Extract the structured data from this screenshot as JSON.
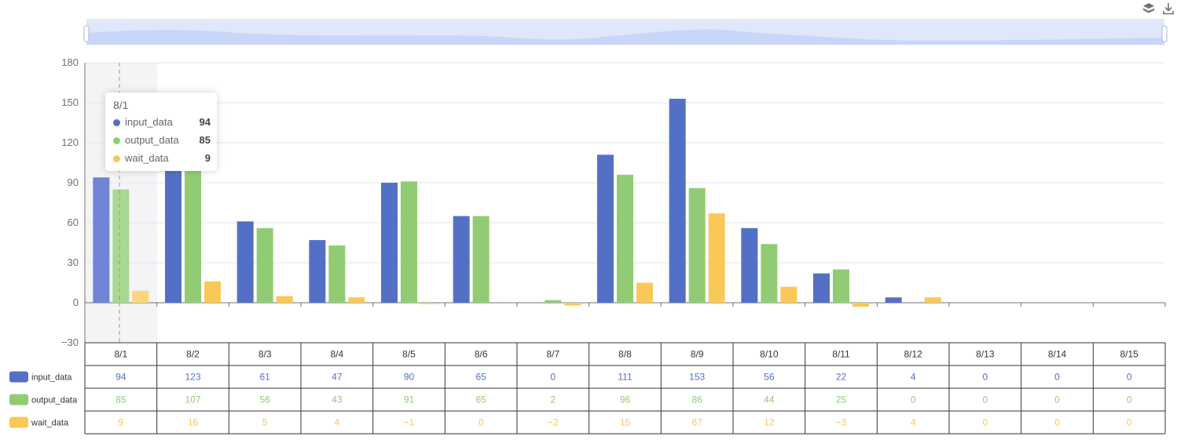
{
  "toolbox": {
    "icons": [
      "stack-icon",
      "download-icon"
    ]
  },
  "tooltip": {
    "title": "8/1",
    "rows": [
      {
        "name": "input_data",
        "value": "94",
        "color": "#5470c6"
      },
      {
        "name": "output_data",
        "value": "85",
        "color": "#91cc75"
      },
      {
        "name": "wait_data",
        "value": "9",
        "color": "#fac858"
      }
    ]
  },
  "chart_data": {
    "type": "bar",
    "title": "",
    "xlabel": "",
    "ylabel": "",
    "ylim": [
      -30,
      180
    ],
    "yticks": [
      "180",
      "150",
      "120",
      "90",
      "60",
      "30",
      "0",
      "−30"
    ],
    "grid": true,
    "legend": "bottom-left table",
    "categories": [
      "8/1",
      "8/2",
      "8/3",
      "8/4",
      "8/5",
      "8/6",
      "8/7",
      "8/8",
      "8/9",
      "8/10",
      "8/11",
      "8/12",
      "8/13",
      "8/14",
      "8/15"
    ],
    "series": [
      {
        "name": "input_data",
        "color": "#5470c6",
        "values": [
          94,
          123,
          61,
          47,
          90,
          65,
          0,
          111,
          153,
          56,
          22,
          4,
          0,
          0,
          0
        ],
        "labels": [
          "94",
          "123",
          "61",
          "47",
          "90",
          "65",
          "0",
          "111",
          "153",
          "56",
          "22",
          "4",
          "0",
          "0",
          "0"
        ]
      },
      {
        "name": "output_data",
        "color": "#91cc75",
        "values": [
          85,
          107,
          56,
          43,
          91,
          65,
          2,
          96,
          86,
          44,
          25,
          0,
          0,
          0,
          0
        ],
        "labels": [
          "85",
          "107",
          "56",
          "43",
          "91",
          "65",
          "2",
          "96",
          "86",
          "44",
          "25",
          "0",
          "0",
          "0",
          "0"
        ]
      },
      {
        "name": "wait_data",
        "color": "#fac858",
        "values": [
          9,
          16,
          5,
          4,
          -1,
          0,
          -2,
          15,
          67,
          12,
          -3,
          4,
          0,
          0,
          0
        ],
        "labels": [
          "9",
          "16",
          "5",
          "4",
          "−1",
          "0",
          "−2",
          "15",
          "67",
          "12",
          "−3",
          "4",
          "0",
          "0",
          "0"
        ]
      }
    ]
  }
}
